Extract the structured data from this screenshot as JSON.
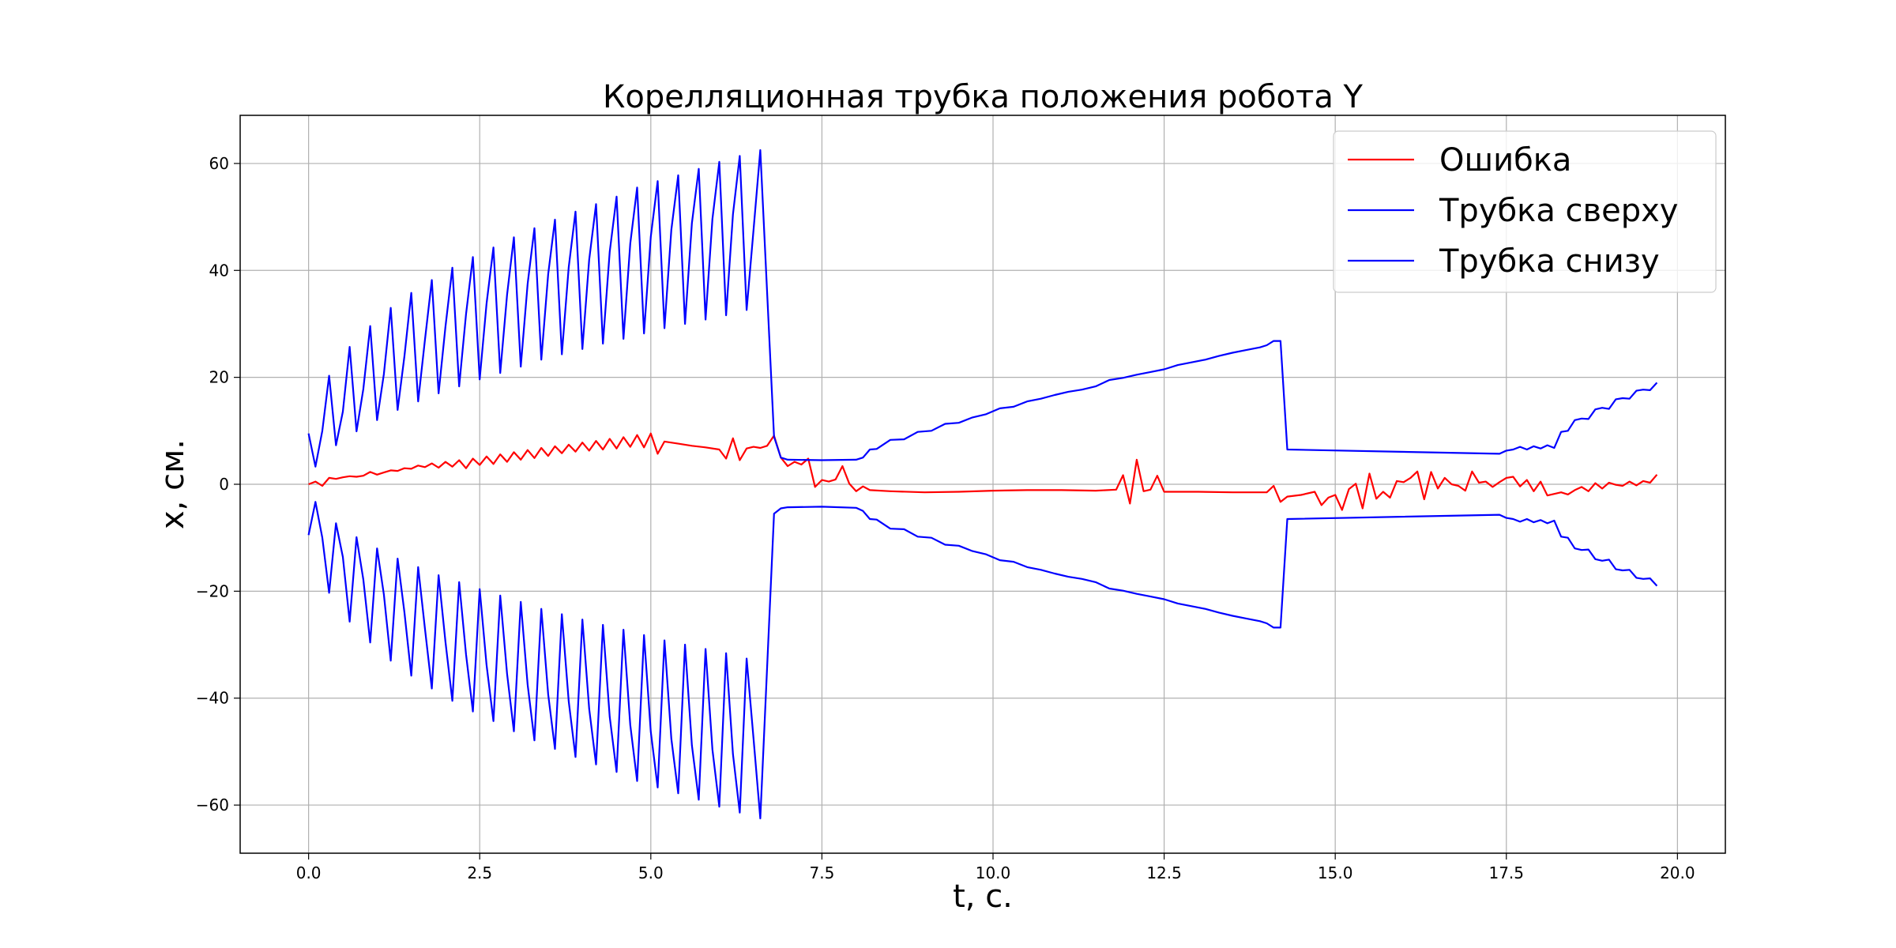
{
  "chart_data": {
    "type": "line",
    "title": "Корелляционная трубка положения робота Y",
    "xlabel": "t, c.",
    "ylabel": "x, см.",
    "xlim": [
      -1.0,
      20.7
    ],
    "ylim": [
      -69,
      69
    ],
    "x_ticks": [
      0.0,
      2.5,
      5.0,
      7.5,
      10.0,
      12.5,
      15.0,
      17.5,
      20.0
    ],
    "x_tick_labels": [
      "0.0",
      "2.5",
      "5.0",
      "7.5",
      "10.0",
      "12.5",
      "15.0",
      "17.5",
      "20.0"
    ],
    "y_ticks": [
      -60,
      -40,
      -20,
      0,
      20,
      40,
      60
    ],
    "y_tick_labels": [
      "−60",
      "−40",
      "−20",
      "0",
      "20",
      "40",
      "60"
    ],
    "grid": true,
    "legend_position": "top-right",
    "series": [
      {
        "name": "Ошибка",
        "color": "#ff0000",
        "x": [
          0.0,
          0.1,
          0.2,
          0.3,
          0.4,
          0.5,
          0.6,
          0.7,
          0.8,
          0.9,
          1.0,
          1.1,
          1.2,
          1.3,
          1.4,
          1.5,
          1.6,
          1.7,
          1.8,
          1.9,
          2.0,
          2.1,
          2.2,
          2.3,
          2.4,
          2.5,
          2.6,
          2.7,
          2.8,
          2.9,
          3.0,
          3.1,
          3.2,
          3.3,
          3.4,
          3.5,
          3.6,
          3.7,
          3.8,
          3.9,
          4.0,
          4.1,
          4.2,
          4.3,
          4.4,
          4.5,
          4.6,
          4.7,
          4.8,
          4.9,
          5.0,
          5.1,
          5.2,
          5.4,
          5.6,
          5.8,
          6.0,
          6.1,
          6.2,
          6.3,
          6.4,
          6.5,
          6.6,
          6.7,
          6.8,
          6.9,
          7.0,
          7.1,
          7.2,
          7.3,
          7.4,
          7.5,
          7.6,
          7.7,
          7.8,
          7.9,
          8.0,
          8.1,
          8.2,
          8.5,
          9.0,
          9.5,
          10.0,
          10.5,
          11.0,
          11.5,
          11.8,
          11.9,
          12.0,
          12.1,
          12.2,
          12.3,
          12.4,
          12.5,
          13.0,
          13.5,
          14.0,
          14.1,
          14.2,
          14.3,
          14.5,
          14.7,
          14.8,
          14.9,
          15.0,
          15.1,
          15.2,
          15.3,
          15.4,
          15.5,
          15.6,
          15.7,
          15.8,
          15.9,
          16.0,
          16.1,
          16.2,
          16.3,
          16.4,
          16.5,
          16.6,
          16.7,
          16.8,
          16.9,
          17.0,
          17.1,
          17.2,
          17.3,
          17.4,
          17.5,
          17.6,
          17.7,
          17.8,
          17.9,
          18.0,
          18.1,
          18.2,
          18.3,
          18.4,
          18.5,
          18.6,
          18.7,
          18.8,
          18.9,
          19.0,
          19.1,
          19.2,
          19.3,
          19.4,
          19.5,
          19.6,
          19.7
        ],
        "y": [
          0.0,
          0.5,
          -0.3,
          1.2,
          1.0,
          1.3,
          1.5,
          1.4,
          1.6,
          2.3,
          1.8,
          2.2,
          2.6,
          2.5,
          3.0,
          2.9,
          3.5,
          3.2,
          3.9,
          3.1,
          4.2,
          3.3,
          4.5,
          3.0,
          4.8,
          3.6,
          5.2,
          3.8,
          5.6,
          4.2,
          6.0,
          4.6,
          6.4,
          4.9,
          6.8,
          5.3,
          7.1,
          5.8,
          7.4,
          6.1,
          7.8,
          6.3,
          8.1,
          6.5,
          8.5,
          6.7,
          8.8,
          7.0,
          9.2,
          6.9,
          9.5,
          5.7,
          8.0,
          7.6,
          7.2,
          6.9,
          6.5,
          4.8,
          8.6,
          4.5,
          6.7,
          7.0,
          6.8,
          7.2,
          9.1,
          5.0,
          3.4,
          4.2,
          3.7,
          4.8,
          -0.5,
          0.8,
          0.5,
          0.9,
          3.4,
          0.1,
          -1.3,
          -0.4,
          -1.1,
          -1.3,
          -1.5,
          -1.4,
          -1.2,
          -1.1,
          -1.1,
          -1.2,
          -1.0,
          1.7,
          -3.6,
          4.6,
          -1.3,
          -1.0,
          1.6,
          -1.4,
          -1.4,
          -1.5,
          -1.5,
          -0.3,
          -3.3,
          -2.3,
          -2.0,
          -1.4,
          -3.9,
          -2.5,
          -2.0,
          -4.8,
          -0.9,
          0.1,
          -4.5,
          2.0,
          -2.7,
          -1.4,
          -2.5,
          0.6,
          0.4,
          1.2,
          2.4,
          -2.8,
          2.3,
          -0.8,
          1.2,
          0.0,
          -0.3,
          -1.2,
          2.4,
          0.3,
          0.5,
          -0.5,
          0.4,
          1.2,
          1.4,
          -0.4,
          0.8,
          -1.3,
          0.5,
          -2.1,
          -1.8,
          -1.5,
          -1.9,
          -1.1,
          -0.5,
          -1.3,
          0.2,
          -0.8,
          0.3,
          -0.1,
          -0.3,
          0.5,
          -0.2,
          0.6,
          0.3,
          1.8
        ]
      },
      {
        "name": "Трубка сверху",
        "color": "#0000ff",
        "x": [
          0.0,
          0.1,
          0.2,
          0.3,
          0.4,
          0.5,
          0.6,
          0.7,
          0.8,
          0.9,
          1.0,
          1.1,
          1.2,
          1.3,
          1.4,
          1.5,
          1.6,
          1.7,
          1.8,
          1.9,
          2.0,
          2.1,
          2.2,
          2.3,
          2.4,
          2.5,
          2.6,
          2.7,
          2.8,
          2.9,
          3.0,
          3.1,
          3.2,
          3.3,
          3.4,
          3.5,
          3.6,
          3.7,
          3.8,
          3.9,
          4.0,
          4.1,
          4.2,
          4.3,
          4.4,
          4.5,
          4.6,
          4.7,
          4.8,
          4.9,
          5.0,
          5.1,
          5.2,
          5.3,
          5.4,
          5.5,
          5.6,
          5.7,
          5.8,
          5.9,
          6.0,
          6.1,
          6.2,
          6.3,
          6.4,
          6.5,
          6.6,
          6.8,
          6.9,
          7.0,
          7.5,
          8.0,
          8.1,
          8.2,
          8.3,
          8.5,
          8.7,
          8.9,
          9.1,
          9.3,
          9.5,
          9.7,
          9.9,
          10.1,
          10.3,
          10.5,
          10.7,
          10.9,
          11.1,
          11.3,
          11.5,
          11.7,
          11.9,
          12.1,
          12.3,
          12.5,
          12.7,
          12.9,
          13.1,
          13.3,
          13.5,
          13.7,
          13.9,
          14.0,
          14.1,
          14.2,
          14.3,
          17.4,
          17.5,
          17.6,
          17.7,
          17.8,
          17.9,
          18.0,
          18.1,
          18.2,
          18.3,
          18.4,
          18.5,
          18.6,
          18.7,
          18.8,
          18.9,
          19.0,
          19.1,
          19.2,
          19.3,
          19.4,
          19.5,
          19.6,
          19.7
        ],
        "y": [
          9.5,
          3.3,
          10.0,
          20.3,
          7.3,
          13.6,
          25.7,
          9.9,
          17.8,
          29.6,
          12.0,
          20.6,
          33.0,
          13.9,
          23.9,
          35.8,
          15.5,
          27.0,
          38.2,
          17.0,
          29.5,
          40.5,
          18.3,
          31.8,
          42.5,
          19.6,
          33.8,
          44.3,
          20.8,
          35.5,
          46.2,
          22.0,
          37.5,
          47.9,
          23.3,
          39.3,
          49.5,
          24.3,
          40.6,
          51.0,
          25.3,
          42.0,
          52.4,
          26.3,
          43.5,
          53.8,
          27.2,
          45.0,
          55.5,
          28.2,
          46.3,
          56.7,
          29.2,
          47.6,
          57.8,
          30.0,
          48.8,
          59.0,
          30.8,
          49.6,
          60.3,
          31.6,
          50.5,
          61.4,
          32.6,
          47.5,
          62.5,
          8.9,
          5.0,
          4.6,
          4.5,
          4.6,
          5.0,
          6.5,
          6.6,
          8.3,
          8.4,
          9.8,
          10.0,
          11.3,
          11.5,
          12.5,
          13.1,
          14.2,
          14.5,
          15.5,
          16.0,
          16.7,
          17.3,
          17.7,
          18.3,
          19.5,
          19.9,
          20.5,
          21.0,
          21.5,
          22.3,
          22.8,
          23.3,
          24.0,
          24.6,
          25.1,
          25.6,
          26.0,
          26.8,
          26.8,
          6.5,
          5.7,
          6.3,
          6.5,
          7.0,
          6.5,
          7.1,
          6.7,
          7.3,
          6.8,
          9.8,
          10.0,
          12.0,
          12.3,
          12.2,
          14.0,
          14.3,
          14.1,
          15.9,
          16.1,
          16.0,
          17.5,
          17.7,
          17.6,
          19.0
        ]
      },
      {
        "name": "Трубка снизу",
        "color": "#0000ff",
        "x": [
          0.0,
          0.1,
          0.2,
          0.3,
          0.4,
          0.5,
          0.6,
          0.7,
          0.8,
          0.9,
          1.0,
          1.1,
          1.2,
          1.3,
          1.4,
          1.5,
          1.6,
          1.7,
          1.8,
          1.9,
          2.0,
          2.1,
          2.2,
          2.3,
          2.4,
          2.5,
          2.6,
          2.7,
          2.8,
          2.9,
          3.0,
          3.1,
          3.2,
          3.3,
          3.4,
          3.5,
          3.6,
          3.7,
          3.8,
          3.9,
          4.0,
          4.1,
          4.2,
          4.3,
          4.4,
          4.5,
          4.6,
          4.7,
          4.8,
          4.9,
          5.0,
          5.1,
          5.2,
          5.3,
          5.4,
          5.5,
          5.6,
          5.7,
          5.8,
          5.9,
          6.0,
          6.1,
          6.2,
          6.3,
          6.4,
          6.5,
          6.6,
          6.8,
          6.9,
          7.0,
          7.5,
          8.0,
          8.1,
          8.2,
          8.3,
          8.5,
          8.7,
          8.9,
          9.1,
          9.3,
          9.5,
          9.7,
          9.9,
          10.1,
          10.3,
          10.5,
          10.7,
          10.9,
          11.1,
          11.3,
          11.5,
          11.7,
          11.9,
          12.1,
          12.3,
          12.5,
          12.7,
          12.9,
          13.1,
          13.3,
          13.5,
          13.7,
          13.9,
          14.0,
          14.1,
          14.2,
          14.3,
          17.4,
          17.5,
          17.6,
          17.7,
          17.8,
          17.9,
          18.0,
          18.1,
          18.2,
          18.3,
          18.4,
          18.5,
          18.6,
          18.7,
          18.8,
          18.9,
          19.0,
          19.1,
          19.2,
          19.3,
          19.4,
          19.5,
          19.6,
          19.7
        ],
        "y": [
          -9.5,
          -3.3,
          -10.0,
          -20.3,
          -7.3,
          -13.6,
          -25.7,
          -9.9,
          -17.8,
          -29.6,
          -12.0,
          -20.6,
          -33.0,
          -13.9,
          -23.9,
          -35.8,
          -15.5,
          -27.0,
          -38.2,
          -17.0,
          -29.5,
          -40.5,
          -18.3,
          -31.8,
          -42.5,
          -19.6,
          -33.8,
          -44.3,
          -20.8,
          -35.5,
          -46.2,
          -22.0,
          -37.5,
          -47.9,
          -23.3,
          -39.3,
          -49.5,
          -24.3,
          -40.6,
          -51.0,
          -25.3,
          -42.0,
          -52.4,
          -26.3,
          -43.5,
          -53.8,
          -27.2,
          -45.0,
          -55.5,
          -28.2,
          -46.3,
          -56.7,
          -29.2,
          -47.6,
          -57.8,
          -30.0,
          -48.8,
          -59.0,
          -30.8,
          -49.6,
          -60.3,
          -31.6,
          -50.5,
          -61.4,
          -32.6,
          -47.5,
          -62.5,
          -5.5,
          -4.5,
          -4.3,
          -4.2,
          -4.4,
          -5.0,
          -6.5,
          -6.6,
          -8.3,
          -8.4,
          -9.8,
          -10.0,
          -11.3,
          -11.5,
          -12.5,
          -13.1,
          -14.2,
          -14.5,
          -15.5,
          -16.0,
          -16.7,
          -17.3,
          -17.7,
          -18.3,
          -19.5,
          -19.9,
          -20.5,
          -21.0,
          -21.5,
          -22.3,
          -22.8,
          -23.3,
          -24.0,
          -24.6,
          -25.1,
          -25.6,
          -26.0,
          -26.8,
          -26.8,
          -6.5,
          -5.7,
          -6.3,
          -6.5,
          -7.0,
          -6.5,
          -7.1,
          -6.7,
          -7.3,
          -6.8,
          -9.8,
          -10.0,
          -12.0,
          -12.3,
          -12.2,
          -14.0,
          -14.3,
          -14.1,
          -15.9,
          -16.1,
          -16.0,
          -17.5,
          -17.7,
          -17.6,
          -19.0
        ]
      }
    ]
  }
}
